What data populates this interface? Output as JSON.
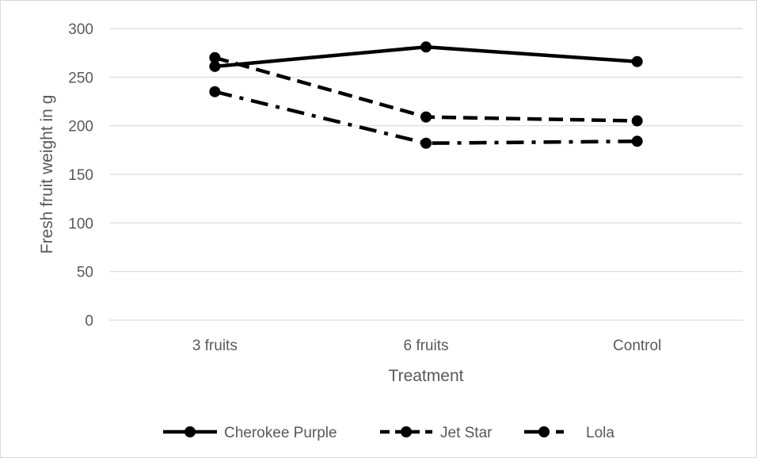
{
  "chart_data": {
    "type": "line",
    "title": "",
    "xlabel": "Treatment",
    "ylabel": "Fresh fruit weight in g",
    "categories": [
      "3 fruits",
      "6 fruits",
      "Control"
    ],
    "ylim": [
      0,
      300
    ],
    "yticks": [
      0,
      50,
      100,
      150,
      200,
      250,
      300
    ],
    "grid": true,
    "legend_position": "bottom",
    "series": [
      {
        "name": "Cherokee Purple",
        "values": [
          261,
          281,
          266
        ],
        "style": "solid",
        "color": "#000000"
      },
      {
        "name": "Jet Star",
        "values": [
          270,
          209,
          205
        ],
        "style": "dashed",
        "color": "#000000"
      },
      {
        "name": "Lola",
        "values": [
          235,
          182,
          184
        ],
        "style": "dash-dot",
        "color": "#000000"
      }
    ]
  }
}
